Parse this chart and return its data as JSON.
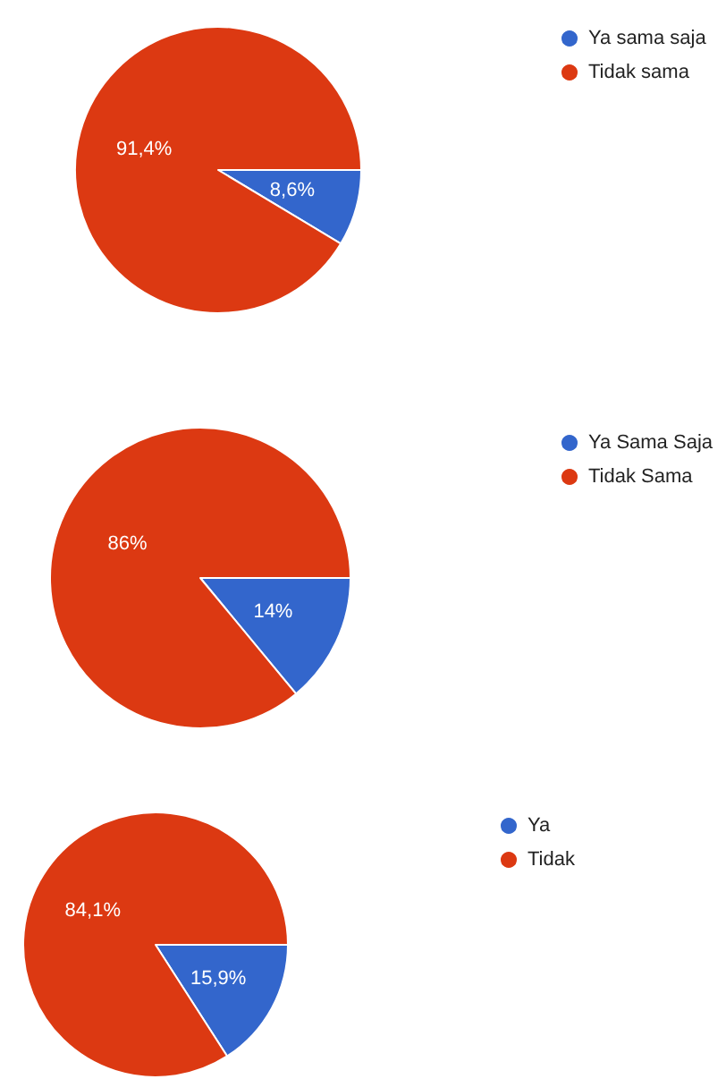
{
  "chart_data": [
    {
      "type": "pie",
      "categories": [
        "Ya sama saja",
        "Tidak sama"
      ],
      "values": [
        8.6,
        91.4
      ],
      "colors": [
        "#3366cc",
        "#dc3912"
      ],
      "value_labels": [
        "8,6%",
        "91,4%"
      ],
      "legend": "top right"
    },
    {
      "type": "pie",
      "categories": [
        "Ya Sama Saja",
        "Tidak Sama"
      ],
      "values": [
        14,
        86
      ],
      "colors": [
        "#3366cc",
        "#dc3912"
      ],
      "value_labels": [
        "14%",
        "86%"
      ],
      "legend": "top right"
    },
    {
      "type": "pie",
      "categories": [
        "Ya",
        "Tidak"
      ],
      "values": [
        15.9,
        84.1
      ],
      "colors": [
        "#3366cc",
        "#dc3912"
      ],
      "value_labels": [
        "15,9%",
        "84,1%"
      ],
      "legend": "top right"
    }
  ]
}
